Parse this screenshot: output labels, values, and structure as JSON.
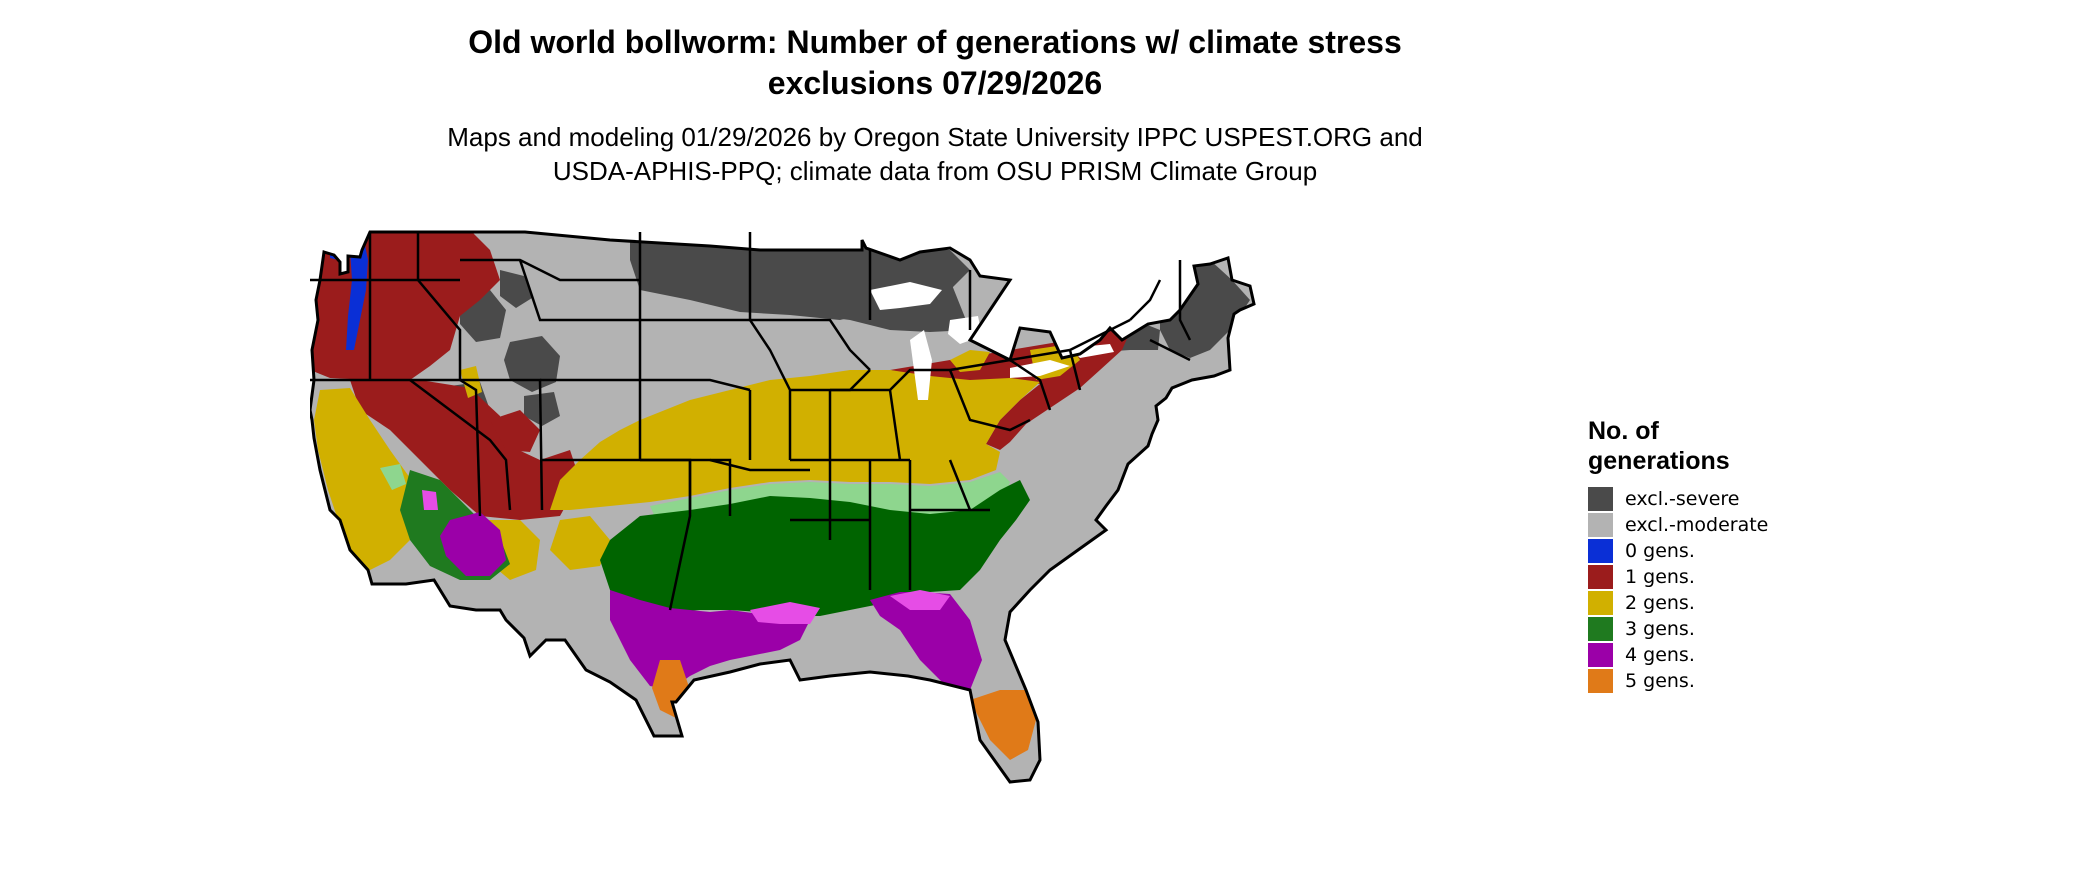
{
  "title": {
    "line1": "Old world bollworm: Number of generations w/ climate stress",
    "line2": "exclusions 07/29/2026"
  },
  "subtitle": {
    "line1": "Maps and modeling 01/29/2026 by Oregon State University IPPC USPEST.ORG and",
    "line2": "USDA-APHIS-PPQ; climate data from OSU PRISM Climate Group"
  },
  "legend": {
    "title_line1": "No. of",
    "title_line2": "generations",
    "items": [
      {
        "label": "excl.-severe",
        "color": "#4a4a4a"
      },
      {
        "label": "excl.-moderate",
        "color": "#b3b3b3"
      },
      {
        "label": "0 gens.",
        "color": "#0a2fd6"
      },
      {
        "label": "1 gens.",
        "color": "#9b1c1c"
      },
      {
        "label": "2 gens.",
        "color": "#d1b000"
      },
      {
        "label": "3 gens.",
        "color": "#1f7a1f"
      },
      {
        "label": "4 gens.",
        "color": "#9b00a8"
      },
      {
        "label": "5 gens.",
        "color": "#e07a18"
      }
    ]
  },
  "map": {
    "colors": {
      "excl_severe": "#4a4a4a",
      "excl_moderate": "#b3b3b3",
      "gen0": "#0a2fd6",
      "gen1": "#9b1c1c",
      "gen2": "#d1b000",
      "gen3_light": "#8ed68e",
      "gen3": "#006400",
      "gen4": "#9b00a8",
      "gen4_light": "#e64de6",
      "gen5": "#e07a18",
      "water": "#ffffff"
    }
  }
}
